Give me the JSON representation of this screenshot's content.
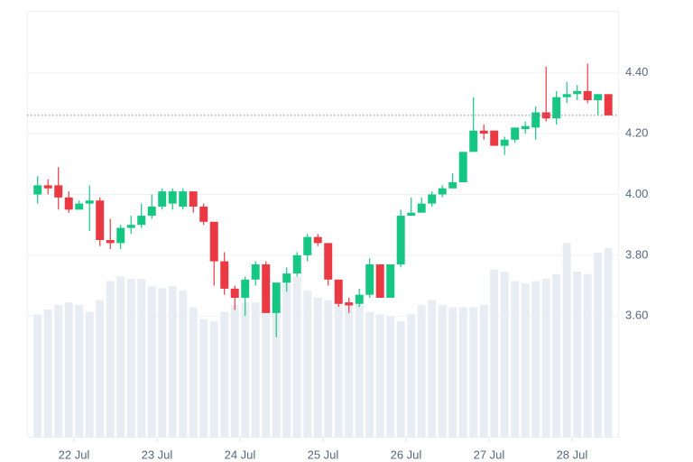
{
  "chart_data": {
    "type": "candlestick",
    "x": [
      21.5625,
      21.6875,
      21.8125,
      21.9375,
      22.0625,
      22.1875,
      22.3125,
      22.4375,
      22.5625,
      22.6875,
      22.8125,
      22.9375,
      23.0625,
      23.1875,
      23.3125,
      23.4375,
      23.5625,
      23.6875,
      23.8125,
      23.9375,
      24.0625,
      24.1875,
      24.3125,
      24.4375,
      24.5625,
      24.6875,
      24.8125,
      24.9375,
      25.0625,
      25.1875,
      25.3125,
      25.4375,
      25.5625,
      25.6875,
      25.8125,
      25.9375,
      26.0625,
      26.1875,
      26.3125,
      26.4375,
      26.5625,
      26.6875,
      26.8125,
      26.9375,
      27.0625,
      27.1875,
      27.3125,
      27.4375,
      27.5625,
      27.6875,
      27.8125,
      27.9375,
      28.0625,
      28.1875,
      28.3125,
      28.4375
    ],
    "open": [
      4.0,
      4.03,
      4.03,
      3.99,
      3.95,
      3.97,
      3.98,
      3.85,
      3.84,
      3.89,
      3.9,
      3.93,
      3.96,
      3.97,
      3.96,
      4.01,
      3.96,
      3.91,
      3.78,
      3.69,
      3.66,
      3.72,
      3.77,
      3.61,
      3.71,
      3.74,
      3.8,
      3.86,
      3.84,
      3.72,
      3.645,
      3.64,
      3.67,
      3.77,
      3.66,
      3.77,
      3.93,
      3.94,
      3.97,
      4.0,
      4.02,
      4.04,
      4.14,
      4.21,
      4.21,
      4.16,
      4.18,
      4.215,
      4.22,
      4.27,
      4.25,
      4.32,
      4.33,
      4.34,
      4.31,
      4.33
    ],
    "high": [
      4.06,
      4.05,
      4.09,
      4.01,
      3.98,
      4.03,
      3.99,
      3.92,
      3.9,
      3.93,
      3.97,
      4.0,
      4.02,
      4.02,
      4.02,
      4.01,
      3.97,
      3.91,
      3.81,
      3.7,
      3.73,
      3.78,
      3.78,
      3.71,
      3.76,
      3.81,
      3.87,
      3.87,
      3.84,
      3.72,
      3.66,
      3.69,
      3.79,
      3.77,
      3.77,
      3.95,
      3.99,
      3.99,
      4.01,
      4.03,
      4.07,
      4.14,
      4.32,
      4.23,
      4.21,
      4.19,
      4.22,
      4.24,
      4.29,
      4.42,
      4.34,
      4.37,
      4.36,
      4.43,
      4.33,
      4.33
    ],
    "low": [
      3.97,
      4.0,
      3.95,
      3.94,
      3.95,
      3.88,
      3.83,
      3.82,
      3.82,
      3.87,
      3.89,
      3.92,
      3.95,
      3.95,
      3.95,
      3.94,
      3.9,
      3.7,
      3.67,
      3.62,
      3.6,
      3.7,
      3.61,
      3.53,
      3.68,
      3.73,
      3.78,
      3.83,
      3.7,
      3.63,
      3.61,
      3.63,
      3.66,
      3.66,
      3.66,
      3.76,
      3.93,
      3.94,
      3.96,
      3.99,
      4.02,
      4.04,
      4.14,
      4.18,
      4.16,
      4.13,
      4.17,
      4.2,
      4.18,
      4.24,
      4.23,
      4.3,
      4.31,
      4.3,
      4.26,
      4.26
    ],
    "close": [
      4.03,
      4.02,
      3.99,
      3.95,
      3.97,
      3.98,
      3.85,
      3.84,
      3.89,
      3.9,
      3.93,
      3.96,
      4.01,
      4.01,
      4.01,
      3.96,
      3.91,
      3.78,
      3.69,
      3.66,
      3.72,
      3.77,
      3.61,
      3.71,
      3.74,
      3.8,
      3.86,
      3.84,
      3.72,
      3.64,
      3.635,
      3.67,
      3.77,
      3.66,
      3.77,
      3.93,
      3.94,
      3.97,
      4.0,
      4.02,
      4.04,
      4.14,
      4.21,
      4.2,
      4.16,
      4.18,
      4.22,
      4.225,
      4.27,
      4.25,
      4.32,
      4.33,
      4.34,
      4.31,
      4.33,
      4.26
    ],
    "volumes": [
      52,
      54,
      56,
      57,
      56,
      53,
      58,
      66,
      68,
      67,
      67,
      64,
      63,
      64,
      62,
      55,
      50,
      49,
      53,
      56,
      57,
      57,
      58,
      58,
      66,
      68,
      62,
      59,
      58,
      56,
      57,
      56,
      53,
      52,
      51,
      49,
      52,
      56,
      58,
      56,
      55,
      55,
      55,
      56,
      71,
      70,
      66,
      65,
      66,
      67,
      69,
      82,
      70,
      69,
      78,
      80
    ],
    "volume_ylim": [
      0,
      180
    ],
    "up_color": "#16c784",
    "down_color": "#ea3943",
    "volume_color": "#e8edf3",
    "xlim": [
      21.435,
      28.555
    ],
    "xticks": [
      {
        "value": 22,
        "label": "22 Jul"
      },
      {
        "value": 23,
        "label": "23 Jul"
      },
      {
        "value": 24,
        "label": "24 Jul"
      },
      {
        "value": 25,
        "label": "25 Jul"
      },
      {
        "value": 26,
        "label": "26 Jul"
      },
      {
        "value": 27,
        "label": "27 Jul"
      },
      {
        "value": 28,
        "label": "28 Jul"
      }
    ],
    "ylim": [
      3.2,
      4.604
    ],
    "yticks": [
      {
        "value": 3.6,
        "label": "3.60"
      },
      {
        "value": 3.8,
        "label": "3.80"
      },
      {
        "value": 4.0,
        "label": "4.00"
      },
      {
        "value": 4.2,
        "label": "4.20"
      },
      {
        "value": 4.4,
        "label": "4.40"
      }
    ],
    "grid": true
  }
}
